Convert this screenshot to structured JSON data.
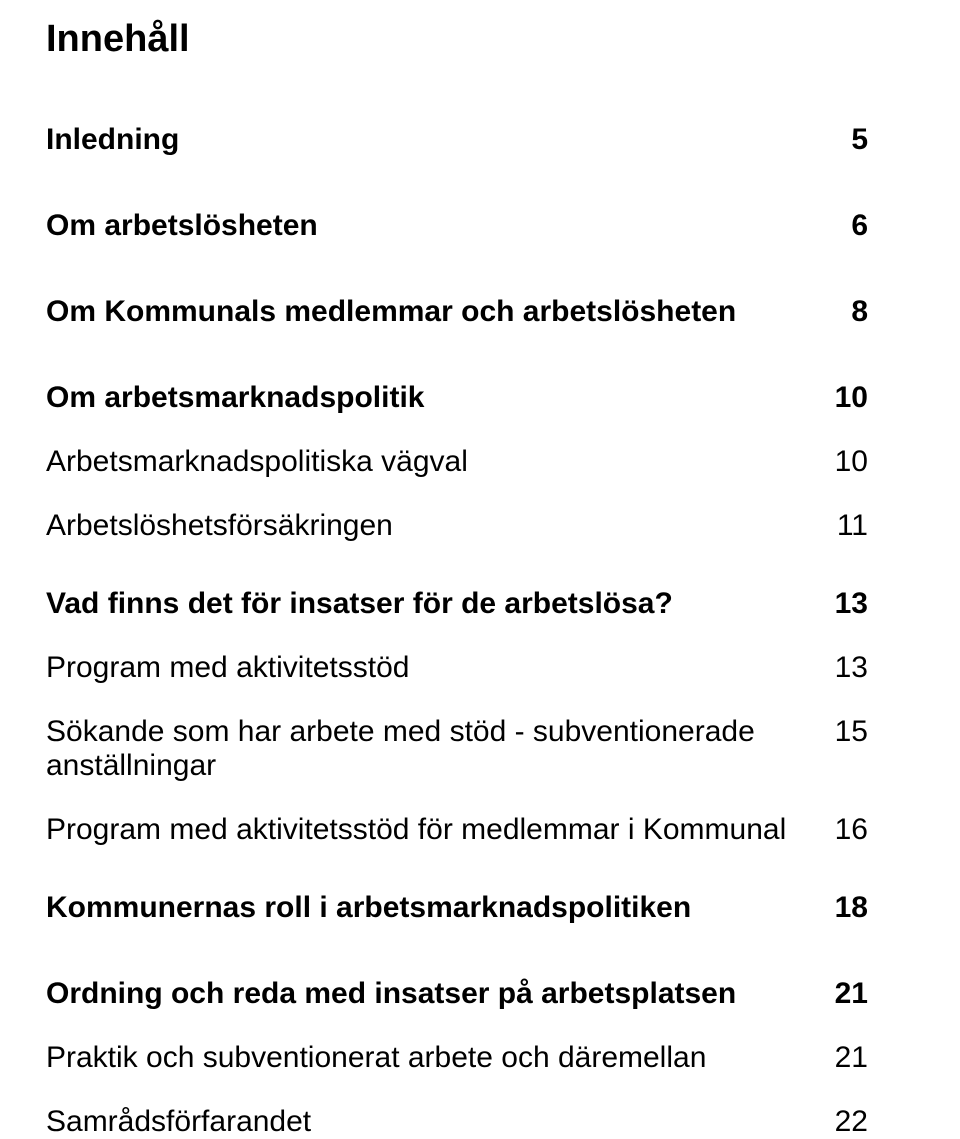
{
  "title": "Innehåll",
  "entries": [
    {
      "label": "Inledning",
      "page": "5",
      "bold": true,
      "gap": "lg"
    },
    {
      "label": "Om arbetslösheten",
      "page": "6",
      "bold": true,
      "gap": "lg"
    },
    {
      "label": "Om Kommunals medlemmar och arbetslösheten",
      "page": "8",
      "bold": true,
      "gap": "lg"
    },
    {
      "label": "Om arbetsmarknadspolitik",
      "page": "10",
      "bold": true,
      "gap": "sm"
    },
    {
      "label": "Arbetsmarknadspolitiska vägval",
      "page": "10",
      "bold": false,
      "gap": "sm"
    },
    {
      "label": "Arbetslöshetsförsäkringen",
      "page": "11",
      "bold": false,
      "gap": "md"
    },
    {
      "label": "Vad finns det för insatser för de arbetslösa?",
      "page": "13",
      "bold": true,
      "gap": "sm"
    },
    {
      "label": "Program med aktivitetsstöd",
      "page": "13",
      "bold": false,
      "gap": "sm"
    },
    {
      "label": "Sökande som har arbete med stöd - subventionerade anställningar",
      "page": "15",
      "bold": false,
      "gap": "sm"
    },
    {
      "label": "Program med aktivitetsstöd för medlemmar i Kommunal",
      "page": "16",
      "bold": false,
      "gap": "md"
    },
    {
      "label": "Kommunernas roll i arbetsmarknadspolitiken",
      "page": "18",
      "bold": true,
      "gap": "lg"
    },
    {
      "label": "Ordning och reda med insatser på arbetsplatsen",
      "page": "21",
      "bold": true,
      "gap": "sm"
    },
    {
      "label": "Praktik och subventionerat arbete och däremellan",
      "page": "21",
      "bold": false,
      "gap": "sm"
    },
    {
      "label": "Samrådsförfarandet",
      "page": "22",
      "bold": false,
      "gap": "last"
    }
  ]
}
